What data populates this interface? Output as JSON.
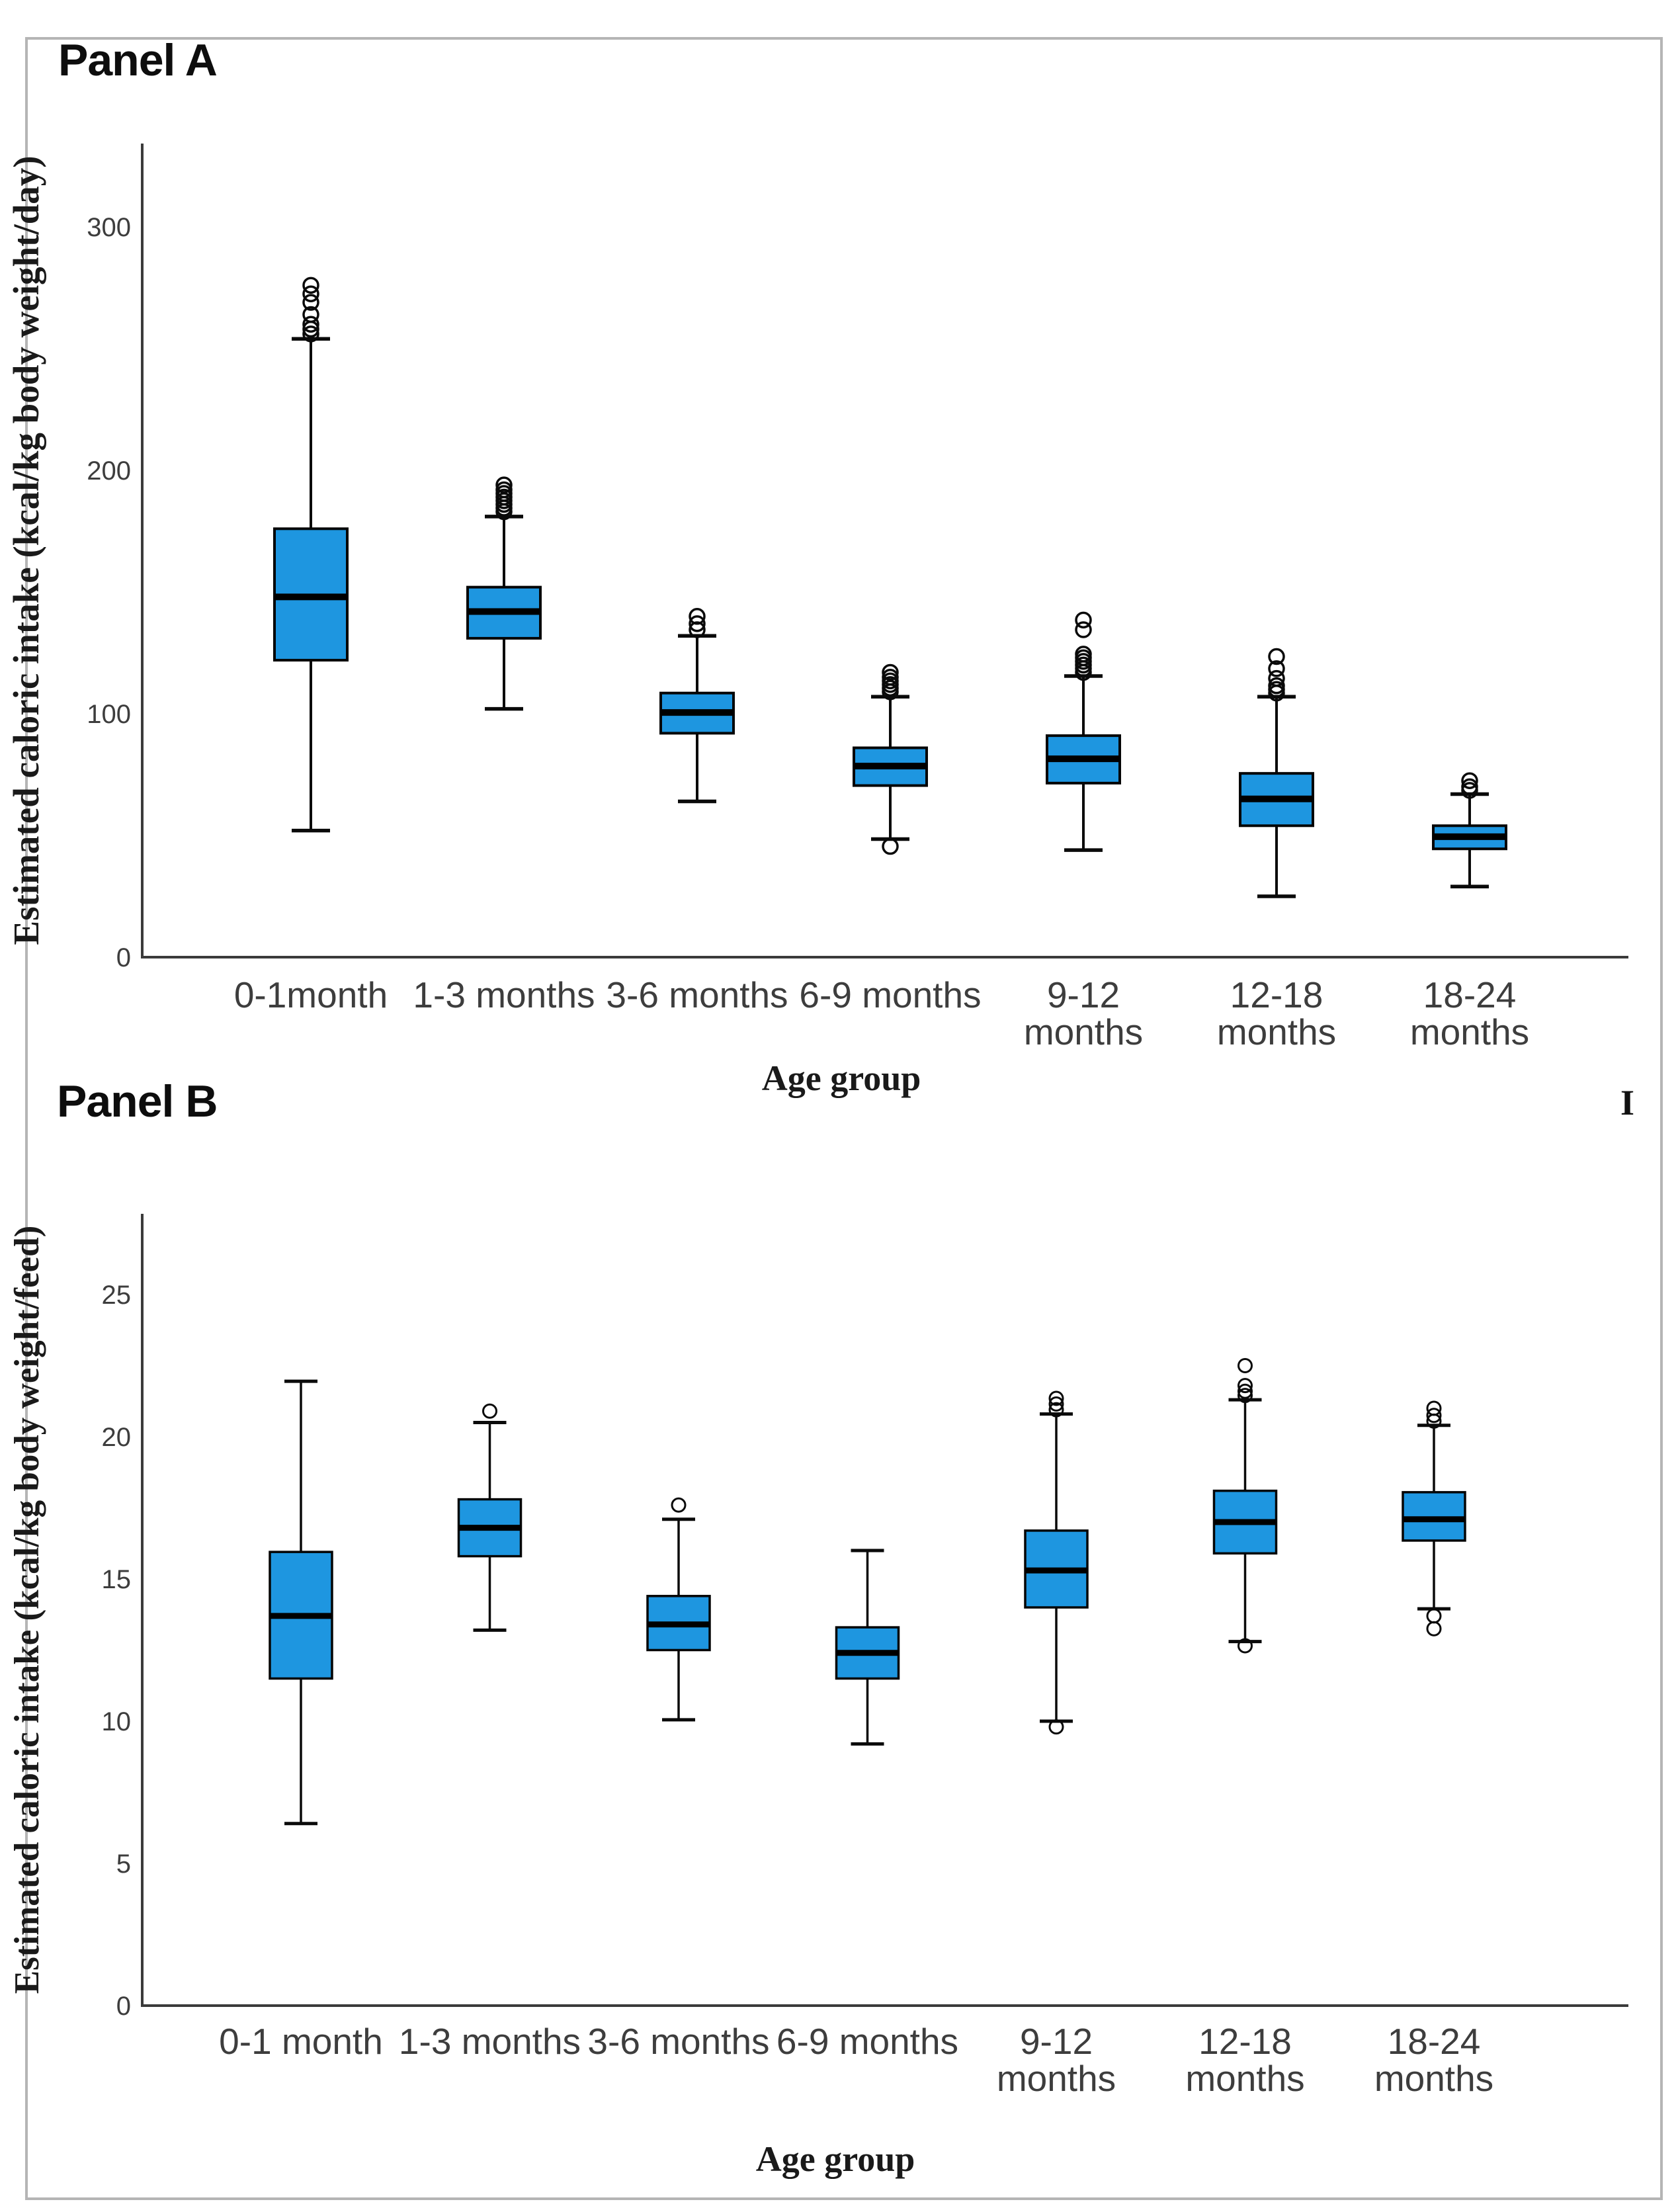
{
  "page": {
    "panel_a_title": "Panel A",
    "panel_b_title": "Panel B",
    "stray_mark": "I"
  },
  "colors": {
    "box_fill": "#1e96e0",
    "box_stroke": "#050505",
    "axis": "#3b3b3b",
    "tick_text": "#3d3d3d",
    "label_text": "#1a1a1a"
  },
  "chart_data": [
    {
      "type": "box",
      "panel": "A",
      "title": "Panel A",
      "ylabel": "Estimated caloric intake (kcal/kg body weight/day)",
      "xlabel": "Age group",
      "yticks": [
        0,
        100,
        200,
        300
      ],
      "ylim": [
        0,
        334
      ],
      "grid": false,
      "boxes": [
        {
          "label_lines": [
            "0-1month"
          ],
          "whisker_low": 52,
          "q1": 122,
          "median": 148,
          "q3": 176,
          "whisker_high": 254,
          "outliers_high": [
            256,
            258,
            260,
            264,
            269,
            272.5,
            276
          ],
          "outliers_low": []
        },
        {
          "label_lines": [
            "1-3 months"
          ],
          "whisker_low": 102,
          "q1": 131,
          "median": 142,
          "q3": 152,
          "whisker_high": 181,
          "outliers_high": [
            183,
            184.5,
            186,
            187.5,
            189,
            190.5,
            192,
            194
          ],
          "outliers_low": []
        },
        {
          "label_lines": [
            "3-6 months"
          ],
          "whisker_low": 64,
          "q1": 92,
          "median": 100.5,
          "q3": 108.5,
          "whisker_high": 132,
          "outliers_high": [
            134.5,
            137,
            140
          ],
          "outliers_low": []
        },
        {
          "label_lines": [
            "6-9 months"
          ],
          "whisker_low": 48.5,
          "q1": 70.5,
          "median": 78.5,
          "q3": 86,
          "whisker_high": 107,
          "outliers_high": [
            109,
            110.5,
            112,
            113.5,
            115,
            117
          ],
          "outliers_low": [
            45.5
          ]
        },
        {
          "label_lines": [
            "9-12",
            "months"
          ],
          "whisker_low": 44,
          "q1": 71.5,
          "median": 81.5,
          "q3": 91,
          "whisker_high": 115.5,
          "outliers_high": [
            117,
            118.5,
            120,
            121.5,
            123,
            124.5,
            134.5,
            138.5
          ],
          "outliers_low": []
        },
        {
          "label_lines": [
            "12-18",
            "months"
          ],
          "whisker_low": 25,
          "q1": 54,
          "median": 65,
          "q3": 75.5,
          "whisker_high": 107,
          "outliers_high": [
            108.5,
            110,
            111.5,
            114.5,
            118.5,
            123.5
          ],
          "outliers_low": []
        },
        {
          "label_lines": [
            "18-24",
            "months"
          ],
          "whisker_low": 29,
          "q1": 44.5,
          "median": 49.5,
          "q3": 54,
          "whisker_high": 67,
          "outliers_high": [
            68.5,
            70,
            72.5
          ],
          "outliers_low": []
        }
      ]
    },
    {
      "type": "box",
      "panel": "B",
      "title": "Panel B",
      "ylabel": "Estimated caloric intake (kcal/kg body weight/feed)",
      "xlabel": "Age group",
      "yticks": [
        0,
        5,
        10,
        15,
        20,
        25
      ],
      "ylim": [
        0,
        27.8
      ],
      "grid": false,
      "boxes": [
        {
          "label_lines": [
            "0-1 month"
          ],
          "whisker_low": 6.4,
          "q1": 11.5,
          "median": 13.7,
          "q3": 15.95,
          "whisker_high": 21.95,
          "outliers_high": [],
          "outliers_low": []
        },
        {
          "label_lines": [
            "1-3 months"
          ],
          "whisker_low": 13.2,
          "q1": 15.8,
          "median": 16.8,
          "q3": 17.8,
          "whisker_high": 20.5,
          "outliers_high": [
            20.9
          ],
          "outliers_low": []
        },
        {
          "label_lines": [
            "3-6 months"
          ],
          "whisker_low": 10.05,
          "q1": 12.5,
          "median": 13.4,
          "q3": 14.4,
          "whisker_high": 17.1,
          "outliers_high": [
            17.6
          ],
          "outliers_low": []
        },
        {
          "label_lines": [
            "6-9 months"
          ],
          "whisker_low": 9.2,
          "q1": 11.5,
          "median": 12.4,
          "q3": 13.3,
          "whisker_high": 16.0,
          "outliers_high": [],
          "outliers_low": []
        },
        {
          "label_lines": [
            "9-12",
            "months"
          ],
          "whisker_low": 10.0,
          "q1": 14.0,
          "median": 15.3,
          "q3": 16.7,
          "whisker_high": 20.8,
          "outliers_high": [
            20.95,
            21.15,
            21.35
          ],
          "outliers_low": [
            9.8
          ]
        },
        {
          "label_lines": [
            "12-18",
            "months"
          ],
          "whisker_low": 12.8,
          "q1": 15.9,
          "median": 17.0,
          "q3": 18.1,
          "whisker_high": 21.3,
          "outliers_high": [
            21.45,
            21.6,
            21.8,
            22.5
          ],
          "outliers_low": [
            12.65
          ]
        },
        {
          "label_lines": [
            "18-24",
            "months"
          ],
          "whisker_low": 13.95,
          "q1": 16.35,
          "median": 17.1,
          "q3": 18.05,
          "whisker_high": 20.4,
          "outliers_high": [
            20.55,
            20.75,
            21.0
          ],
          "outliers_low": [
            13.7,
            13.25
          ]
        }
      ]
    }
  ]
}
